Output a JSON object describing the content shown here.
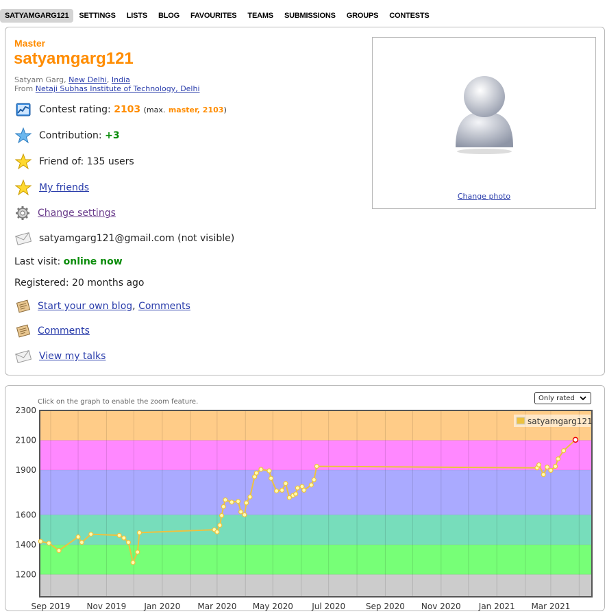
{
  "nav": {
    "tabs": [
      "SATYAMGARG121",
      "SETTINGS",
      "LISTS",
      "BLOG",
      "FAVOURITES",
      "TEAMS",
      "SUBMISSIONS",
      "GROUPS",
      "CONTESTS"
    ]
  },
  "profile": {
    "rank": "Master",
    "handle": "satyamgarg121",
    "name": "Satyam Garg",
    "city": "New Delhi",
    "country": "India",
    "from_label": "From",
    "organization": "Netaji Subhas Institute of Technology, Delhi",
    "rating_label": "Contest rating:",
    "rating": "2103",
    "max_prefix": "(max.",
    "max_rank_value": "master, 2103",
    "max_suffix": ")",
    "contribution_label": "Contribution:",
    "contribution": "+3",
    "friend_of": "Friend of: 135 users",
    "my_friends": "My friends",
    "change_settings": "Change settings",
    "email": "satyamgarg121@gmail.com (not visible)",
    "last_visit_label": "Last visit:",
    "last_visit": "online now",
    "registered": "Registered: 20 months ago",
    "blog_link": "Start your own blog",
    "comments_link": "Comments",
    "comments_link2": "Comments",
    "talks_link": "View my talks",
    "change_photo": "Change photo"
  },
  "chart_panel": {
    "zoom_hint": "Click on the graph to enable the zoom feature.",
    "filter_selected": "Only rated"
  },
  "colors": {
    "accent_orange": "#ff8c00",
    "link_blue": "#2a3dab",
    "online_green": "#0a8c0a",
    "line": "#edc240"
  },
  "chart_data": {
    "type": "line",
    "title": "",
    "xlabel": "",
    "ylabel": "",
    "ylim": [
      1050,
      2300
    ],
    "y_ticks": [
      "1200",
      "1400",
      "1600",
      "1900",
      "2100",
      "2300"
    ],
    "x_ticks": [
      "Sep 2019",
      "Nov 2019",
      "Jan 2020",
      "Mar 2020",
      "May 2020",
      "Jul 2020",
      "Sep 2020",
      "Nov 2020",
      "Jan 2021",
      "Mar 2021"
    ],
    "xlim": [
      "2019-08-20",
      "2021-04-15"
    ],
    "legend": "top-right",
    "grid": true,
    "bands": [
      {
        "from": 1050,
        "to": 1200,
        "color": "#cccccc"
      },
      {
        "from": 1200,
        "to": 1400,
        "color": "#77ff77"
      },
      {
        "from": 1400,
        "to": 1600,
        "color": "#77ddbb"
      },
      {
        "from": 1600,
        "to": 1900,
        "color": "#aaaaff"
      },
      {
        "from": 1900,
        "to": 2100,
        "color": "#ff88ff"
      },
      {
        "from": 2100,
        "to": 2300,
        "color": "#ffcc88"
      }
    ],
    "series": [
      {
        "name": "satyamgarg121",
        "color": "#edc240",
        "points": [
          [
            "2019-08-21",
            1422
          ],
          [
            "2019-08-30",
            1410
          ],
          [
            "2019-09-10",
            1360
          ],
          [
            "2019-10-01",
            1452
          ],
          [
            "2019-10-05",
            1415
          ],
          [
            "2019-10-15",
            1470
          ],
          [
            "2019-11-15",
            1462
          ],
          [
            "2019-11-20",
            1445
          ],
          [
            "2019-11-25",
            1415
          ],
          [
            "2019-11-30",
            1280
          ],
          [
            "2019-12-05",
            1350
          ],
          [
            "2019-12-07",
            1480
          ],
          [
            "2020-02-27",
            1500
          ],
          [
            "2020-03-01",
            1485
          ],
          [
            "2020-03-04",
            1530
          ],
          [
            "2020-03-06",
            1595
          ],
          [
            "2020-03-08",
            1655
          ],
          [
            "2020-03-10",
            1700
          ],
          [
            "2020-03-17",
            1685
          ],
          [
            "2020-03-24",
            1690
          ],
          [
            "2020-03-27",
            1620
          ],
          [
            "2020-03-31",
            1600
          ],
          [
            "2020-04-02",
            1680
          ],
          [
            "2020-04-06",
            1720
          ],
          [
            "2020-04-11",
            1855
          ],
          [
            "2020-04-13",
            1880
          ],
          [
            "2020-04-18",
            1905
          ],
          [
            "2020-04-27",
            1895
          ],
          [
            "2020-04-29",
            1845
          ],
          [
            "2020-05-05",
            1760
          ],
          [
            "2020-05-11",
            1765
          ],
          [
            "2020-05-15",
            1810
          ],
          [
            "2020-05-19",
            1715
          ],
          [
            "2020-05-23",
            1730
          ],
          [
            "2020-05-26",
            1740
          ],
          [
            "2020-05-28",
            1780
          ],
          [
            "2020-06-02",
            1790
          ],
          [
            "2020-06-04",
            1765
          ],
          [
            "2020-06-12",
            1800
          ],
          [
            "2020-06-15",
            1835
          ],
          [
            "2020-06-18",
            1925
          ],
          [
            "2021-02-14",
            1915
          ],
          [
            "2021-02-16",
            1935
          ],
          [
            "2021-02-21",
            1870
          ],
          [
            "2021-02-25",
            1920
          ],
          [
            "2021-03-01",
            1898
          ],
          [
            "2021-03-06",
            1925
          ],
          [
            "2021-03-09",
            1975
          ],
          [
            "2021-03-15",
            2030
          ],
          [
            "2021-03-28",
            2103
          ]
        ]
      }
    ]
  }
}
